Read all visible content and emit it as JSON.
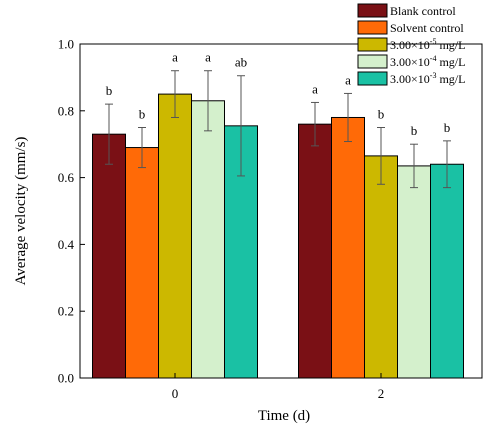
{
  "chart_data": {
    "type": "bar",
    "xlabel": "Time (d)",
    "ylabel": "Average velocity (mm/s)",
    "ylim": [
      0.0,
      1.0
    ],
    "yticks": [
      "0.0",
      "0.2",
      "0.4",
      "0.6",
      "0.8",
      "1.0"
    ],
    "categories": [
      "0",
      "2"
    ],
    "error_bars": true,
    "legend_position": "top-right",
    "series": [
      {
        "name": "Blank control",
        "legend_parts": [
          "Blank control"
        ],
        "color": "#7a1015",
        "values": [
          0.73,
          0.76
        ],
        "errors": [
          0.09,
          0.065
        ],
        "sig": [
          "b",
          "a"
        ]
      },
      {
        "name": "Solvent control",
        "legend_parts": [
          "Solvent control"
        ],
        "color": "#ff6a07",
        "values": [
          0.69,
          0.78
        ],
        "errors": [
          0.06,
          0.072
        ],
        "sig": [
          "b",
          "a"
        ]
      },
      {
        "name": "3.00×10-5 mg/L",
        "legend_parts": [
          "3.00×10",
          "-5",
          " mg/L"
        ],
        "color": "#ccb800",
        "values": [
          0.85,
          0.665
        ],
        "errors": [
          0.07,
          0.085
        ],
        "sig": [
          "a",
          "b"
        ]
      },
      {
        "name": "3.00×10-4 mg/L",
        "legend_parts": [
          "3.00×10",
          "-4",
          " mg/L"
        ],
        "color": "#d4f0cc",
        "values": [
          0.83,
          0.635
        ],
        "errors": [
          0.09,
          0.065
        ],
        "sig": [
          "a",
          "b"
        ]
      },
      {
        "name": "3.00×10-3 mg/L",
        "legend_parts": [
          "3.00×10",
          "-3",
          " mg/L"
        ],
        "color": "#1ac1a4",
        "values": [
          0.755,
          0.64
        ],
        "errors": [
          0.15,
          0.07
        ],
        "sig": [
          "ab",
          "b"
        ]
      }
    ]
  }
}
